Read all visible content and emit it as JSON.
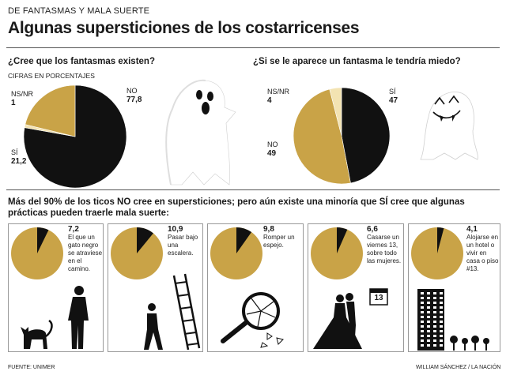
{
  "header": {
    "kicker": "DE FANTASMAS Y MALA SUERTE",
    "title": "Algunas supersticiones de los costarricenses"
  },
  "colors": {
    "gold": "#c9a347",
    "black": "#111111",
    "light": "#f3e3b2"
  },
  "q1": {
    "question": "¿Cree que los fantasmas existen?",
    "subtitle": "CIFRAS EN PORCENTAJES"
  },
  "q2": {
    "question": "¿Si se le aparece un fantasma le tendría miedo?"
  },
  "chart_data": [
    {
      "type": "pie",
      "title": "¿Cree que los fantasmas existen?",
      "slices": [
        {
          "label": "NO",
          "value": "77,8",
          "color": "#111111"
        },
        {
          "label": "NS/NR",
          "value": "1",
          "color": "#f3e3b2"
        },
        {
          "label": "SÍ",
          "value": "21,2",
          "color": "#c9a347"
        }
      ]
    },
    {
      "type": "pie",
      "title": "¿Si se le aparece un fantasma le tendría miedo?",
      "slices": [
        {
          "label": "SÍ",
          "value": "47",
          "color": "#111111"
        },
        {
          "label": "NO",
          "value": "49",
          "color": "#c9a347"
        },
        {
          "label": "NS/NR",
          "value": "4",
          "color": "#f3e3b2"
        }
      ]
    },
    {
      "type": "pie",
      "title": "",
      "note": "Más del 90% de los ticos NO cree en supersticiones; pero aún existe una minoría que SÍ cree que algunas prácticas pueden traerle mala suerte:",
      "items": [
        {
          "value": "7,2",
          "text": "El que un gato negro se atraviese en el camino."
        },
        {
          "value": "10,9",
          "text": "Pasar bajo una escalera."
        },
        {
          "value": "9,8",
          "text": "Romper un espejo."
        },
        {
          "value": "6,6",
          "text": "Casarse un viernes 13, sobre todo las mujeres."
        },
        {
          "value": "4,1",
          "text": "Alojarse en un hotel o vivir en casa o piso #13."
        }
      ]
    }
  ],
  "calendar": {
    "day": "13"
  },
  "footer": {
    "source": "FUENTE: UNIMER",
    "credit": "WILLIAM SÁNCHEZ / LA NACIÓN"
  }
}
